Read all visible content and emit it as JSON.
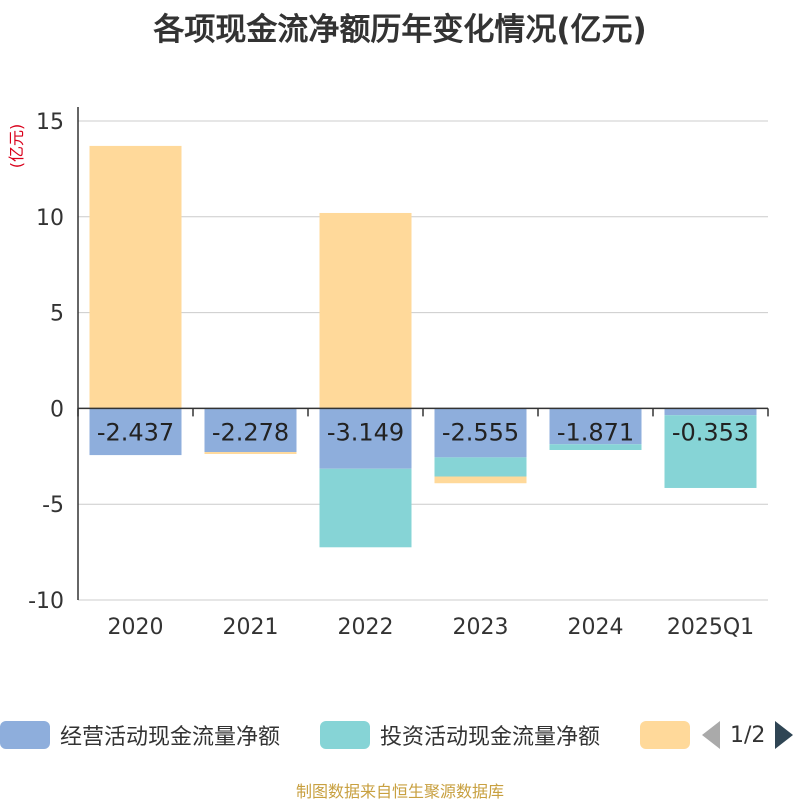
{
  "chart_data": {
    "type": "bar",
    "stacked": true,
    "title": "各项现金流净额历年变化情况(亿元)",
    "ylabel": "(亿元)",
    "xlabel": "",
    "categories": [
      "2020",
      "2021",
      "2022",
      "2023",
      "2024",
      "2025Q1"
    ],
    "ylim": [
      -10,
      15
    ],
    "yticks": [
      15,
      10,
      5,
      0,
      -5,
      -10
    ],
    "series": [
      {
        "name": "经营活动现金流量净额",
        "color": "#8eaedc",
        "values": [
          -2.437,
          -2.278,
          -3.149,
          -2.555,
          -1.871,
          -0.353
        ],
        "labels": [
          "-2.437",
          "-2.278",
          "-3.149",
          "-2.555",
          "-1.871",
          "-0.353"
        ]
      },
      {
        "name": "投资活动现金流量净额",
        "color": "#86d4d6",
        "values": [
          0,
          0,
          -4.1,
          -1.0,
          -0.3,
          -3.8
        ]
      },
      {
        "name": "",
        "color": "#ffd99a",
        "values": [
          13.7,
          -0.1,
          10.2,
          -0.35,
          0,
          0
        ]
      }
    ],
    "legend_position": "bottom",
    "legend_page": "1/2"
  },
  "source": "制图数据来自恒生聚源数据库"
}
